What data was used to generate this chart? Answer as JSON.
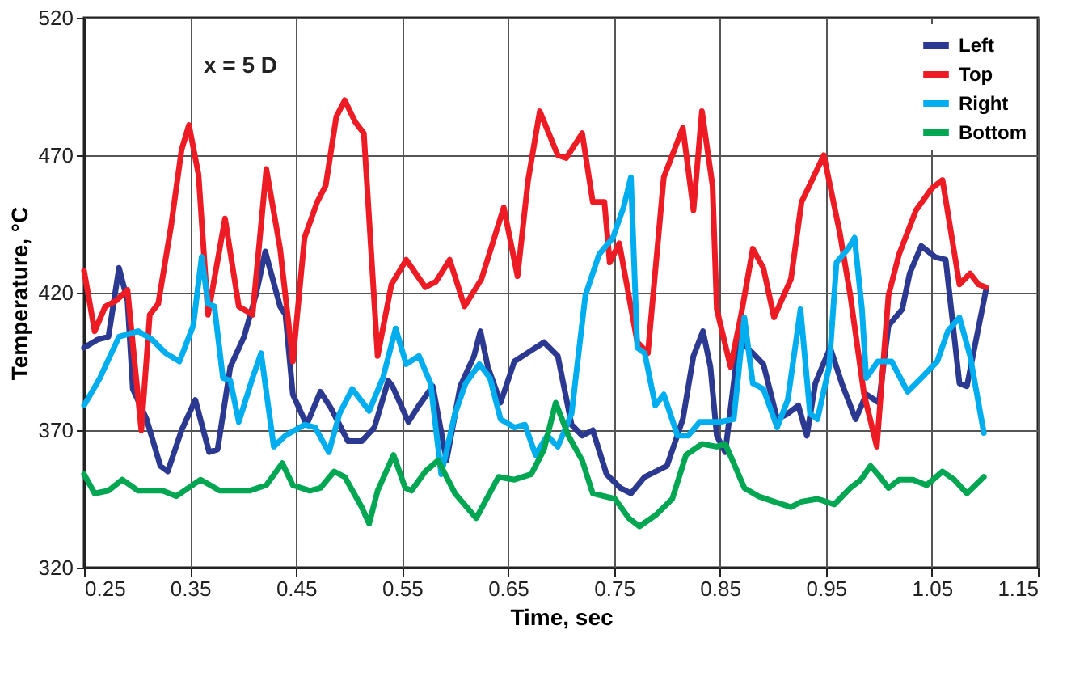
{
  "chart_data": {
    "type": "line",
    "xlabel": "Time, sec",
    "ylabel": "Temperature, °C",
    "annotations": [
      "x = 5 D"
    ],
    "xlim": [
      0.25,
      1.15
    ],
    "xticks": [
      0.25,
      0.35,
      0.45,
      0.55,
      0.65,
      0.75,
      0.85,
      0.95,
      1.05,
      1.15
    ],
    "ylim": [
      320,
      520
    ],
    "yticks": [
      320,
      370,
      420,
      470,
      520
    ],
    "grid": true,
    "legend": "top right",
    "marker": "none",
    "line_style": "solid",
    "series": [
      {
        "name": "Left",
        "color": "#2b3990",
        "x": [
          0.25,
          0.263,
          0.273,
          0.283,
          0.291,
          0.296,
          0.309,
          0.322,
          0.329,
          0.342,
          0.355,
          0.368,
          0.376,
          0.388,
          0.401,
          0.412,
          0.421,
          0.435,
          0.44,
          0.447,
          0.46,
          0.473,
          0.483,
          0.499,
          0.512,
          0.524,
          0.537,
          0.541,
          0.556,
          0.566,
          0.579,
          0.592,
          0.605,
          0.618,
          0.624,
          0.631,
          0.643,
          0.656,
          0.672,
          0.684,
          0.697,
          0.71,
          0.72,
          0.73,
          0.743,
          0.756,
          0.766,
          0.779,
          0.8,
          0.815,
          0.825,
          0.834,
          0.841,
          0.847,
          0.855,
          0.868,
          0.881,
          0.891,
          0.904,
          0.914,
          0.924,
          0.932,
          0.94,
          0.954,
          0.965,
          0.978,
          0.988,
          1.0,
          1.009,
          1.022,
          1.029,
          1.04,
          1.053,
          1.063,
          1.076,
          1.083,
          1.101
        ],
        "values": [
          400,
          403,
          404,
          429,
          417,
          385,
          374,
          357,
          355,
          370,
          381,
          362,
          363,
          393,
          404,
          419,
          435,
          415,
          412,
          383,
          372,
          384,
          378,
          366,
          366,
          371,
          388,
          386,
          373,
          379,
          386,
          359,
          386,
          397,
          406,
          393,
          380,
          395,
          399,
          402,
          397,
          372,
          368,
          370,
          354,
          349,
          347,
          353,
          357,
          374,
          397,
          406,
          393,
          368,
          362,
          403,
          398,
          394,
          374,
          376,
          379,
          368,
          387,
          400,
          387,
          374,
          383,
          380,
          408,
          414,
          427,
          437,
          433,
          432,
          387,
          386,
          421
        ]
      },
      {
        "name": "Top",
        "color": "#ed1c24",
        "x": [
          0.25,
          0.26,
          0.27,
          0.28,
          0.291,
          0.304,
          0.312,
          0.32,
          0.332,
          0.342,
          0.349,
          0.358,
          0.367,
          0.383,
          0.396,
          0.409,
          0.422,
          0.435,
          0.447,
          0.458,
          0.47,
          0.478,
          0.488,
          0.496,
          0.506,
          0.514,
          0.527,
          0.54,
          0.554,
          0.572,
          0.582,
          0.595,
          0.609,
          0.625,
          0.646,
          0.659,
          0.669,
          0.68,
          0.697,
          0.705,
          0.72,
          0.73,
          0.741,
          0.746,
          0.755,
          0.772,
          0.782,
          0.797,
          0.815,
          0.825,
          0.833,
          0.843,
          0.847,
          0.86,
          0.87,
          0.881,
          0.891,
          0.901,
          0.917,
          0.927,
          0.937,
          0.948,
          0.963,
          0.973,
          0.986,
          0.998,
          1.009,
          1.019,
          1.035,
          1.05,
          1.06,
          1.076,
          1.086,
          1.094,
          1.101
        ],
        "values": [
          428,
          406,
          415,
          417,
          421,
          370,
          412,
          416,
          444,
          472,
          481,
          463,
          412,
          447,
          415,
          412,
          465,
          436,
          395,
          440,
          453,
          459,
          484,
          490,
          482,
          478,
          397,
          423,
          432,
          422,
          424,
          432,
          415,
          425,
          451,
          426,
          461,
          486,
          470,
          469,
          478,
          453,
          453,
          431,
          438,
          402,
          398,
          462,
          480,
          450,
          486,
          459,
          414,
          393,
          412,
          436,
          429,
          411,
          425,
          453,
          461,
          470,
          442,
          419,
          383,
          364,
          419,
          434,
          450,
          458,
          461,
          423,
          427,
          423,
          422
        ]
      },
      {
        "name": "Right",
        "color": "#00aeef",
        "x": [
          0.25,
          0.265,
          0.283,
          0.301,
          0.314,
          0.327,
          0.34,
          0.353,
          0.361,
          0.367,
          0.373,
          0.381,
          0.388,
          0.396,
          0.409,
          0.417,
          0.429,
          0.44,
          0.458,
          0.468,
          0.481,
          0.491,
          0.503,
          0.519,
          0.532,
          0.544,
          0.554,
          0.566,
          0.577,
          0.587,
          0.6,
          0.61,
          0.623,
          0.633,
          0.643,
          0.656,
          0.666,
          0.676,
          0.687,
          0.697,
          0.71,
          0.723,
          0.736,
          0.749,
          0.759,
          0.766,
          0.772,
          0.779,
          0.789,
          0.797,
          0.81,
          0.82,
          0.831,
          0.841,
          0.85,
          0.863,
          0.873,
          0.881,
          0.891,
          0.904,
          0.914,
          0.926,
          0.935,
          0.942,
          0.953,
          0.96,
          0.971,
          0.977,
          0.984,
          0.988,
          0.999,
          1.012,
          1.027,
          1.04,
          1.055,
          1.065,
          1.076,
          1.086,
          1.099
        ],
        "values": [
          379,
          389,
          404,
          406,
          403,
          398,
          395,
          408,
          433,
          416,
          415,
          389,
          388,
          373,
          389,
          398,
          364,
          368,
          372,
          371,
          362,
          376,
          385,
          377,
          389,
          407,
          394,
          397,
          387,
          354,
          376,
          387,
          394,
          389,
          374,
          371,
          372,
          361,
          368,
          364,
          376,
          419,
          434,
          440,
          451,
          462,
          400,
          398,
          379,
          383,
          368,
          368,
          373,
          373,
          373,
          374,
          411,
          387,
          385,
          371,
          381,
          414,
          376,
          374,
          393,
          431,
          436,
          440,
          414,
          389,
          395,
          395,
          384,
          389,
          395,
          406,
          411,
          397,
          369
        ]
      },
      {
        "name": "Bottom",
        "color": "#00a651",
        "x": [
          0.25,
          0.26,
          0.273,
          0.286,
          0.301,
          0.324,
          0.337,
          0.36,
          0.378,
          0.406,
          0.422,
          0.437,
          0.447,
          0.463,
          0.473,
          0.486,
          0.496,
          0.512,
          0.519,
          0.527,
          0.542,
          0.553,
          0.559,
          0.572,
          0.584,
          0.6,
          0.62,
          0.641,
          0.656,
          0.672,
          0.684,
          0.695,
          0.707,
          0.72,
          0.73,
          0.751,
          0.764,
          0.774,
          0.789,
          0.805,
          0.818,
          0.833,
          0.847,
          0.855,
          0.863,
          0.873,
          0.886,
          0.901,
          0.917,
          0.927,
          0.942,
          0.958,
          0.973,
          0.983,
          0.992,
          0.999,
          1.009,
          1.019,
          1.032,
          1.045,
          1.06,
          1.071,
          1.083,
          1.099
        ],
        "values": [
          354,
          347,
          348,
          352,
          348,
          348,
          346,
          352,
          348,
          348,
          350,
          358,
          350,
          348,
          349,
          355,
          353,
          342,
          336,
          348,
          361,
          349,
          348,
          355,
          359,
          347,
          338,
          353,
          352,
          354,
          363,
          380,
          368,
          359,
          347,
          345,
          338,
          335,
          339,
          345,
          361,
          365,
          364,
          365,
          358,
          349,
          346,
          344,
          342,
          344,
          345,
          343,
          349,
          352,
          357,
          354,
          349,
          352,
          352,
          350,
          355,
          352,
          347,
          353
        ]
      }
    ]
  }
}
